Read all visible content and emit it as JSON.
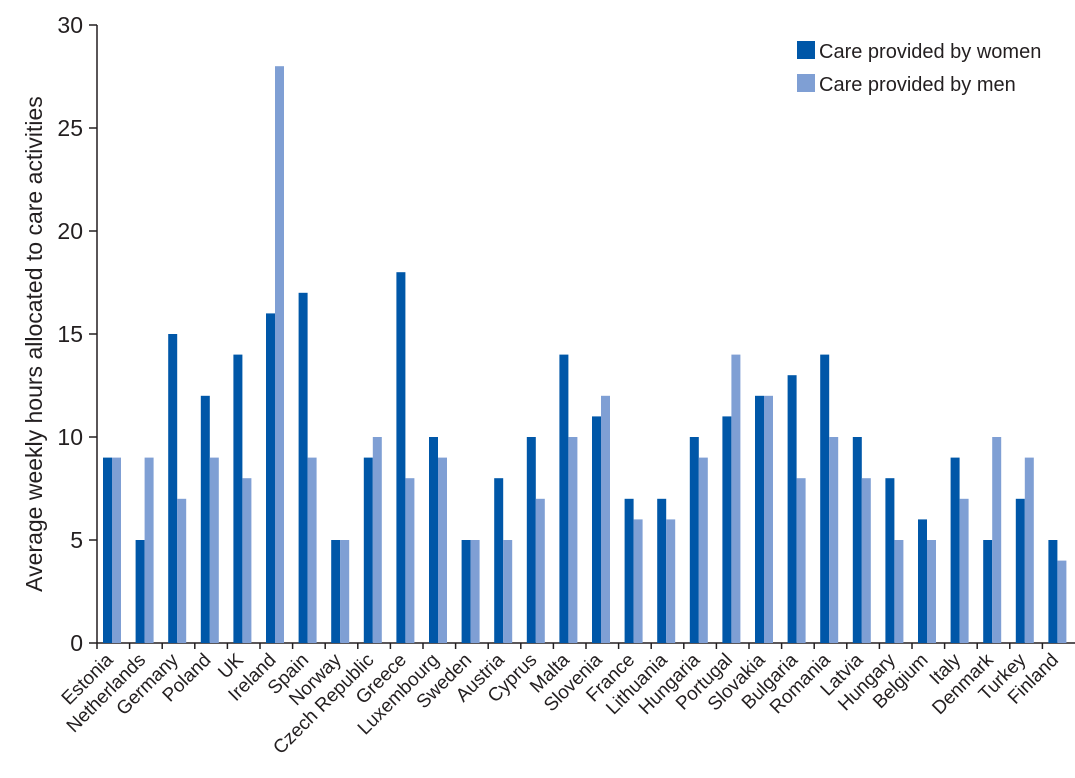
{
  "chart_data": {
    "type": "bar",
    "title": "",
    "xlabel": "",
    "ylabel": "Average weekly hours allocated to care activities",
    "ylim": [
      0,
      30
    ],
    "yticks": [
      0,
      5,
      10,
      15,
      20,
      25,
      30
    ],
    "grid": false,
    "legend_position": "top-right",
    "categories": [
      "Estonia",
      "Netherlands",
      "Germany",
      "Poland",
      "UK",
      "Ireland",
      "Spain",
      "Norway",
      "Czech Republic",
      "Greece",
      "Luxembourg",
      "Sweden",
      "Austria",
      "Cyprus",
      "Malta",
      "Slovenia",
      "France",
      "Lithuania",
      "Hungaria",
      "Portugal",
      "Slovakia",
      "Bulgaria",
      "Romania",
      "Latvia",
      "Hungary",
      "Belgium",
      "Italy",
      "Denmark",
      "Turkey",
      "Finland"
    ],
    "series": [
      {
        "name": "Care provided by women",
        "color": "#0057a8",
        "values": [
          9,
          5,
          15,
          12,
          14,
          16,
          17,
          5,
          9,
          18,
          10,
          5,
          8,
          10,
          14,
          11,
          7,
          7,
          10,
          11,
          12,
          13,
          14,
          10,
          8,
          6,
          9,
          5,
          7,
          5
        ]
      },
      {
        "name": "Care provided by men",
        "color": "#7f9fd4",
        "values": [
          9,
          9,
          7,
          9,
          8,
          28,
          9,
          5,
          10,
          8,
          9,
          5,
          5,
          7,
          10,
          12,
          6,
          6,
          9,
          14,
          12,
          8,
          10,
          8,
          5,
          5,
          7,
          10,
          9,
          4
        ]
      }
    ]
  }
}
